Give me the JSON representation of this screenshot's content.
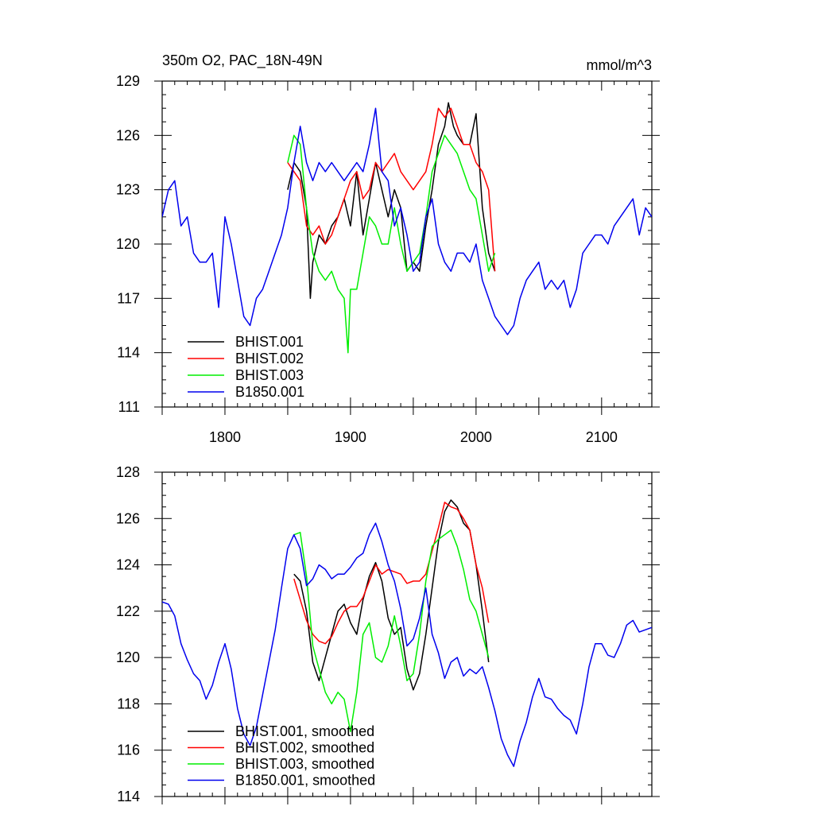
{
  "chart_data": [
    {
      "type": "line",
      "title": "350m O2, PAC_18N-49N",
      "units": "mmol/m^3",
      "xlabel": "",
      "ylabel": "",
      "xlim": [
        1750,
        2140
      ],
      "ylim": [
        111,
        129
      ],
      "xticks": [
        1800,
        1900,
        2000,
        2100
      ],
      "xtick_labels": [
        "1800",
        "1900",
        "2000",
        "2100"
      ],
      "yticks": [
        111,
        114,
        117,
        120,
        123,
        126,
        129
      ],
      "ytick_labels": [
        "111",
        "114",
        "117",
        "120",
        "123",
        "126",
        "129"
      ],
      "legend_position": "bottom-left",
      "grid": false,
      "series": [
        {
          "name": "BHIST.001",
          "color": "#000000",
          "x": [
            1850,
            1855,
            1860,
            1865,
            1868,
            1870,
            1875,
            1880,
            1885,
            1890,
            1895,
            1900,
            1905,
            1910,
            1915,
            1920,
            1925,
            1930,
            1935,
            1940,
            1945,
            1950,
            1955,
            1960,
            1965,
            1970,
            1975,
            1978,
            1982,
            1985,
            1990,
            1995,
            2000,
            2005,
            2010,
            2015
          ],
          "y": [
            123,
            124.5,
            124,
            122,
            117,
            119,
            120.5,
            120,
            121,
            121.5,
            122.5,
            121,
            124,
            120.5,
            122.5,
            124.5,
            123,
            121.5,
            123,
            122,
            118.5,
            119,
            118.5,
            121,
            123,
            125.5,
            126.5,
            127.8,
            126.5,
            126,
            125.5,
            125.5,
            127.2,
            122,
            119.5,
            118.5
          ]
        },
        {
          "name": "BHIST.002",
          "color": "#ff0000",
          "x": [
            1850,
            1855,
            1860,
            1865,
            1870,
            1875,
            1880,
            1885,
            1890,
            1895,
            1900,
            1905,
            1910,
            1915,
            1920,
            1925,
            1930,
            1935,
            1940,
            1945,
            1950,
            1955,
            1960,
            1965,
            1970,
            1975,
            1980,
            1985,
            1990,
            1995,
            2000,
            2005,
            2010,
            2015
          ],
          "y": [
            124.5,
            124,
            123.5,
            121,
            120.5,
            121,
            120,
            120.5,
            121.5,
            122.5,
            123.5,
            124,
            122.5,
            123,
            124.5,
            124,
            124.5,
            125,
            124,
            123.5,
            123,
            123.5,
            124,
            125.5,
            127.5,
            127,
            127.5,
            126.5,
            125.5,
            125.5,
            124.5,
            124,
            123,
            118.5
          ]
        },
        {
          "name": "BHIST.003",
          "color": "#00ee00",
          "x": [
            1850,
            1855,
            1860,
            1865,
            1870,
            1875,
            1880,
            1885,
            1890,
            1895,
            1898,
            1900,
            1905,
            1910,
            1915,
            1920,
            1925,
            1930,
            1935,
            1940,
            1945,
            1950,
            1955,
            1960,
            1965,
            1970,
            1975,
            1980,
            1985,
            1990,
            1995,
            2000,
            2005,
            2010,
            2015
          ],
          "y": [
            124.5,
            126,
            125.5,
            122,
            119.5,
            118.5,
            118,
            118.5,
            117.5,
            117,
            114,
            117.5,
            117.5,
            119.5,
            121.5,
            121,
            120,
            120,
            122,
            120,
            118.5,
            119,
            119.5,
            121.5,
            124,
            125,
            126,
            125.5,
            125,
            124,
            123,
            122.5,
            120.5,
            118.5,
            119.5
          ]
        },
        {
          "name": "B1850.001",
          "color": "#0000ee",
          "x": [
            1750,
            1755,
            1760,
            1765,
            1770,
            1775,
            1780,
            1785,
            1790,
            1795,
            1800,
            1805,
            1810,
            1815,
            1820,
            1825,
            1830,
            1835,
            1840,
            1845,
            1850,
            1855,
            1860,
            1865,
            1870,
            1875,
            1880,
            1885,
            1890,
            1895,
            1900,
            1905,
            1910,
            1915,
            1920,
            1925,
            1930,
            1935,
            1940,
            1945,
            1950,
            1955,
            1960,
            1965,
            1970,
            1975,
            1980,
            1985,
            1990,
            1995,
            2000,
            2005,
            2010,
            2015,
            2020,
            2025,
            2030,
            2035,
            2040,
            2045,
            2050,
            2055,
            2060,
            2065,
            2070,
            2075,
            2080,
            2085,
            2090,
            2095,
            2100,
            2105,
            2110,
            2115,
            2120,
            2125,
            2130,
            2135,
            2140
          ],
          "y": [
            121.5,
            123,
            123.5,
            121,
            121.5,
            119.5,
            119,
            119,
            119.5,
            116.5,
            121.5,
            120,
            118,
            116,
            115.5,
            117,
            117.5,
            118.5,
            119.5,
            120.5,
            122,
            124.5,
            126.5,
            124.5,
            123.5,
            124.5,
            124,
            124.5,
            124,
            123.5,
            124,
            124.5,
            124,
            125.5,
            127.5,
            124,
            123.5,
            121,
            122,
            120.5,
            118.5,
            119,
            121.5,
            122.5,
            120,
            119,
            118.5,
            119.5,
            119.5,
            119,
            120,
            118,
            117,
            116,
            115.5,
            115,
            115.5,
            117,
            118,
            118.5,
            119,
            117.5,
            118,
            117.5,
            118,
            116.5,
            117.5,
            119.5,
            120,
            120.5,
            120.5,
            120,
            121,
            121.5,
            122,
            122.5,
            120.5,
            122,
            121.5
          ]
        }
      ]
    },
    {
      "type": "line",
      "title": "",
      "xlabel": "",
      "ylabel": "",
      "xlim": [
        1750,
        2140
      ],
      "ylim": [
        114,
        128
      ],
      "xticks": [
        1800,
        1900,
        2000,
        2100
      ],
      "yticks": [
        114,
        116,
        118,
        120,
        122,
        124,
        126,
        128
      ],
      "ytick_labels": [
        "114",
        "116",
        "118",
        "120",
        "122",
        "124",
        "126",
        "128"
      ],
      "legend_position": "bottom-left",
      "grid": false,
      "series": [
        {
          "name": "BHIST.001, smoothed",
          "color": "#000000",
          "x": [
            1855,
            1860,
            1865,
            1870,
            1875,
            1880,
            1885,
            1890,
            1895,
            1900,
            1905,
            1910,
            1915,
            1920,
            1925,
            1930,
            1935,
            1940,
            1945,
            1950,
            1955,
            1960,
            1965,
            1970,
            1975,
            1980,
            1985,
            1990,
            1995,
            2000,
            2005,
            2010
          ],
          "y": [
            123.6,
            123.3,
            122,
            119.8,
            119,
            120,
            121,
            122,
            122.3,
            121.5,
            121,
            122.5,
            123.5,
            124.1,
            123.3,
            121.7,
            121,
            121.3,
            119.5,
            118.6,
            119.3,
            121,
            123,
            125,
            126.3,
            126.8,
            126.5,
            125.8,
            125.5,
            124,
            122,
            119.8
          ]
        },
        {
          "name": "BHIST.002, smoothed",
          "color": "#ff0000",
          "x": [
            1855,
            1860,
            1865,
            1870,
            1875,
            1880,
            1885,
            1890,
            1895,
            1900,
            1905,
            1910,
            1915,
            1920,
            1925,
            1930,
            1935,
            1940,
            1945,
            1950,
            1955,
            1960,
            1965,
            1970,
            1975,
            1980,
            1985,
            1990,
            1995,
            2000,
            2005,
            2010
          ],
          "y": [
            123.4,
            122.5,
            121.6,
            121,
            120.7,
            120.6,
            120.9,
            121.5,
            122,
            122.2,
            122.2,
            122.6,
            123.3,
            124,
            123.6,
            123.8,
            123.7,
            123.6,
            123.2,
            123.3,
            123.3,
            123.6,
            124.6,
            125.6,
            126.7,
            126.5,
            126.4,
            126,
            125.5,
            124,
            123,
            121.5
          ]
        },
        {
          "name": "BHIST.003, smoothed",
          "color": "#00ee00",
          "x": [
            1855,
            1860,
            1865,
            1870,
            1875,
            1880,
            1885,
            1890,
            1895,
            1900,
            1905,
            1910,
            1915,
            1920,
            1925,
            1930,
            1935,
            1940,
            1945,
            1950,
            1955,
            1960,
            1965,
            1970,
            1975,
            1980,
            1985,
            1990,
            1995,
            2000,
            2005,
            2010
          ],
          "y": [
            125.3,
            125.4,
            123.5,
            120.5,
            119.5,
            118.5,
            118,
            118.5,
            118.2,
            116.8,
            118.5,
            121,
            121.5,
            120,
            119.8,
            120.5,
            121.8,
            120.5,
            119,
            119.3,
            121,
            123.3,
            124.8,
            125.1,
            125.3,
            125.5,
            124.8,
            123.8,
            122.5,
            122,
            121,
            120
          ]
        },
        {
          "name": "B1850.001, smoothed",
          "color": "#0000ee",
          "x": [
            1750,
            1755,
            1760,
            1765,
            1770,
            1775,
            1780,
            1785,
            1790,
            1795,
            1800,
            1805,
            1810,
            1815,
            1820,
            1825,
            1830,
            1835,
            1840,
            1845,
            1850,
            1855,
            1860,
            1865,
            1870,
            1875,
            1880,
            1885,
            1890,
            1895,
            1900,
            1905,
            1910,
            1915,
            1920,
            1925,
            1930,
            1935,
            1940,
            1945,
            1950,
            1955,
            1960,
            1965,
            1970,
            1975,
            1980,
            1985,
            1990,
            1995,
            2000,
            2005,
            2010,
            2015,
            2020,
            2025,
            2030,
            2035,
            2040,
            2045,
            2050,
            2055,
            2060,
            2065,
            2070,
            2075,
            2080,
            2085,
            2090,
            2095,
            2100,
            2105,
            2110,
            2115,
            2120,
            2125,
            2130,
            2135,
            2140
          ],
          "y": [
            122.4,
            122.3,
            121.8,
            120.6,
            119.9,
            119.3,
            119,
            118.2,
            118.8,
            119.8,
            120.6,
            119.5,
            117.8,
            116.7,
            116.2,
            117,
            118.4,
            119.8,
            121.2,
            123,
            124.7,
            125.3,
            124.7,
            123.1,
            123.4,
            124,
            123.8,
            123.4,
            123.6,
            123.6,
            123.9,
            124.3,
            124.5,
            125.3,
            125.8,
            125,
            124,
            123.3,
            122.1,
            120.5,
            120.8,
            121.7,
            123,
            121,
            120.2,
            119.1,
            119.8,
            120,
            119.2,
            119.5,
            119.3,
            119.6,
            118.7,
            117.7,
            116.5,
            115.8,
            115.3,
            116.4,
            117.2,
            118.3,
            119.1,
            118.3,
            118.2,
            117.8,
            117.5,
            117.3,
            116.7,
            118,
            119.6,
            120.6,
            120.6,
            120.1,
            120,
            120.6,
            121.4,
            121.6,
            121.1,
            121.2,
            121.3
          ]
        }
      ]
    }
  ]
}
